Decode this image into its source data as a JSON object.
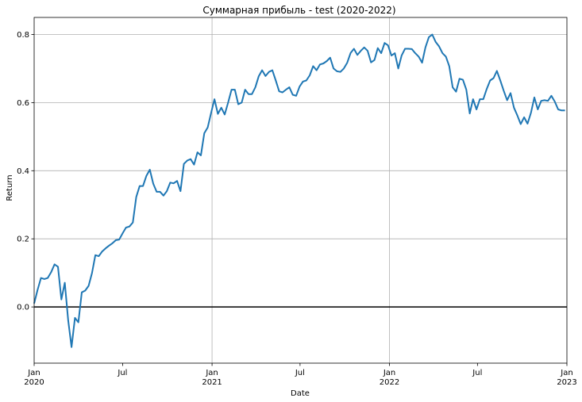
{
  "chart_data": {
    "type": "line",
    "title": "Суммарная прибыль - test (2020-2022)",
    "xlabel": "Date",
    "ylabel": "Return",
    "ylim": [
      -0.165,
      0.85
    ],
    "y_ticks": [
      0.0,
      0.2,
      0.4,
      0.6,
      0.8
    ],
    "y_tick_labels": [
      "0.0",
      "0.2",
      "0.4",
      "0.6",
      "0.8"
    ],
    "x_range": [
      "2020-01-01",
      "2023-01-01"
    ],
    "x_ticks": [
      {
        "date": "2020-01-01",
        "label": "Jan",
        "year": "2020",
        "gridline": false
      },
      {
        "date": "2020-07-01",
        "label": "Jul",
        "year": "",
        "gridline": false
      },
      {
        "date": "2021-01-01",
        "label": "Jan",
        "year": "2021",
        "gridline": true
      },
      {
        "date": "2021-07-01",
        "label": "Jul",
        "year": "",
        "gridline": false
      },
      {
        "date": "2022-01-01",
        "label": "Jan",
        "year": "2022",
        "gridline": true
      },
      {
        "date": "2022-07-01",
        "label": "Jul",
        "year": "",
        "gridline": false
      },
      {
        "date": "2023-01-01",
        "label": "Jan",
        "year": "2023",
        "gridline": false
      }
    ],
    "grid": true,
    "hline": 0,
    "line_color": "#1f77b4",
    "series": [
      {
        "name": "",
        "x": [
          "2020-01-01",
          "2020-01-08",
          "2020-01-15",
          "2020-01-22",
          "2020-01-29",
          "2020-02-05",
          "2020-02-12",
          "2020-02-19",
          "2020-02-26",
          "2020-03-04",
          "2020-03-11",
          "2020-03-18",
          "2020-03-25",
          "2020-04-01",
          "2020-04-08",
          "2020-04-15",
          "2020-04-22",
          "2020-04-29",
          "2020-05-06",
          "2020-05-13",
          "2020-05-20",
          "2020-05-27",
          "2020-06-03",
          "2020-06-10",
          "2020-06-17",
          "2020-06-24",
          "2020-07-01",
          "2020-07-08",
          "2020-07-15",
          "2020-07-22",
          "2020-07-29",
          "2020-08-05",
          "2020-08-12",
          "2020-08-19",
          "2020-08-26",
          "2020-09-02",
          "2020-09-09",
          "2020-09-16",
          "2020-09-23",
          "2020-09-30",
          "2020-10-07",
          "2020-10-14",
          "2020-10-21",
          "2020-10-28",
          "2020-11-04",
          "2020-11-11",
          "2020-11-18",
          "2020-11-25",
          "2020-12-02",
          "2020-12-09",
          "2020-12-16",
          "2020-12-23",
          "2020-12-30",
          "2021-01-06",
          "2021-01-13",
          "2021-01-20",
          "2021-01-27",
          "2021-02-03",
          "2021-02-10",
          "2021-02-17",
          "2021-02-24",
          "2021-03-03",
          "2021-03-10",
          "2021-03-17",
          "2021-03-24",
          "2021-03-31",
          "2021-04-07",
          "2021-04-14",
          "2021-04-21",
          "2021-04-28",
          "2021-05-05",
          "2021-05-12",
          "2021-05-19",
          "2021-05-26",
          "2021-06-02",
          "2021-06-09",
          "2021-06-16",
          "2021-06-23",
          "2021-06-30",
          "2021-07-07",
          "2021-07-14",
          "2021-07-21",
          "2021-07-28",
          "2021-08-04",
          "2021-08-11",
          "2021-08-18",
          "2021-08-25",
          "2021-09-01",
          "2021-09-08",
          "2021-09-15",
          "2021-09-22",
          "2021-09-29",
          "2021-10-06",
          "2021-10-13",
          "2021-10-20",
          "2021-10-27",
          "2021-11-03",
          "2021-11-10",
          "2021-11-17",
          "2021-11-24",
          "2021-12-01",
          "2021-12-08",
          "2021-12-15",
          "2021-12-22",
          "2021-12-29",
          "2022-01-05",
          "2022-01-12",
          "2022-01-19",
          "2022-01-26",
          "2022-02-02",
          "2022-02-09",
          "2022-02-16",
          "2022-02-23",
          "2022-03-02",
          "2022-03-09",
          "2022-03-16",
          "2022-03-23",
          "2022-03-30",
          "2022-04-06",
          "2022-04-13",
          "2022-04-20",
          "2022-04-27",
          "2022-05-04",
          "2022-05-11",
          "2022-05-18",
          "2022-05-25",
          "2022-06-01",
          "2022-06-08",
          "2022-06-15",
          "2022-06-22",
          "2022-06-29",
          "2022-07-06",
          "2022-07-13",
          "2022-07-20",
          "2022-07-27",
          "2022-08-03",
          "2022-08-10",
          "2022-08-17",
          "2022-08-24",
          "2022-08-31",
          "2022-09-07",
          "2022-09-14",
          "2022-09-21",
          "2022-09-28",
          "2022-10-05",
          "2022-10-12",
          "2022-10-19",
          "2022-10-26",
          "2022-11-02",
          "2022-11-09",
          "2022-11-16",
          "2022-11-23",
          "2022-11-30",
          "2022-12-07",
          "2022-12-14",
          "2022-12-21",
          "2022-12-28"
        ],
        "values": [
          0.01,
          0.05,
          0.085,
          0.082,
          0.085,
          0.102,
          0.125,
          0.118,
          0.022,
          0.071,
          -0.04,
          -0.118,
          -0.032,
          -0.045,
          0.043,
          0.048,
          0.062,
          0.1,
          0.152,
          0.149,
          0.163,
          0.172,
          0.18,
          0.187,
          0.196,
          0.198,
          0.216,
          0.233,
          0.236,
          0.248,
          0.323,
          0.355,
          0.355,
          0.385,
          0.403,
          0.362,
          0.338,
          0.338,
          0.327,
          0.34,
          0.365,
          0.363,
          0.37,
          0.34,
          0.42,
          0.43,
          0.434,
          0.418,
          0.454,
          0.445,
          0.51,
          0.527,
          0.57,
          0.61,
          0.567,
          0.585,
          0.565,
          0.6,
          0.638,
          0.638,
          0.595,
          0.6,
          0.638,
          0.625,
          0.625,
          0.645,
          0.677,
          0.695,
          0.678,
          0.69,
          0.695,
          0.665,
          0.633,
          0.63,
          0.638,
          0.645,
          0.623,
          0.62,
          0.647,
          0.662,
          0.665,
          0.68,
          0.707,
          0.695,
          0.712,
          0.715,
          0.722,
          0.732,
          0.7,
          0.692,
          0.69,
          0.7,
          0.717,
          0.746,
          0.758,
          0.74,
          0.752,
          0.762,
          0.752,
          0.718,
          0.725,
          0.76,
          0.745,
          0.775,
          0.768,
          0.738,
          0.745,
          0.7,
          0.738,
          0.758,
          0.758,
          0.757,
          0.745,
          0.735,
          0.717,
          0.762,
          0.792,
          0.8,
          0.778,
          0.765,
          0.745,
          0.735,
          0.707,
          0.645,
          0.632,
          0.67,
          0.667,
          0.638,
          0.568,
          0.61,
          0.58,
          0.61,
          0.61,
          0.64,
          0.665,
          0.672,
          0.693,
          0.665,
          0.635,
          0.607,
          0.628,
          0.585,
          0.562,
          0.537,
          0.557,
          0.538,
          0.57,
          0.615,
          0.58,
          0.605,
          0.607,
          0.605,
          0.62,
          0.603,
          0.58,
          0.577,
          0.577
        ]
      }
    ]
  }
}
